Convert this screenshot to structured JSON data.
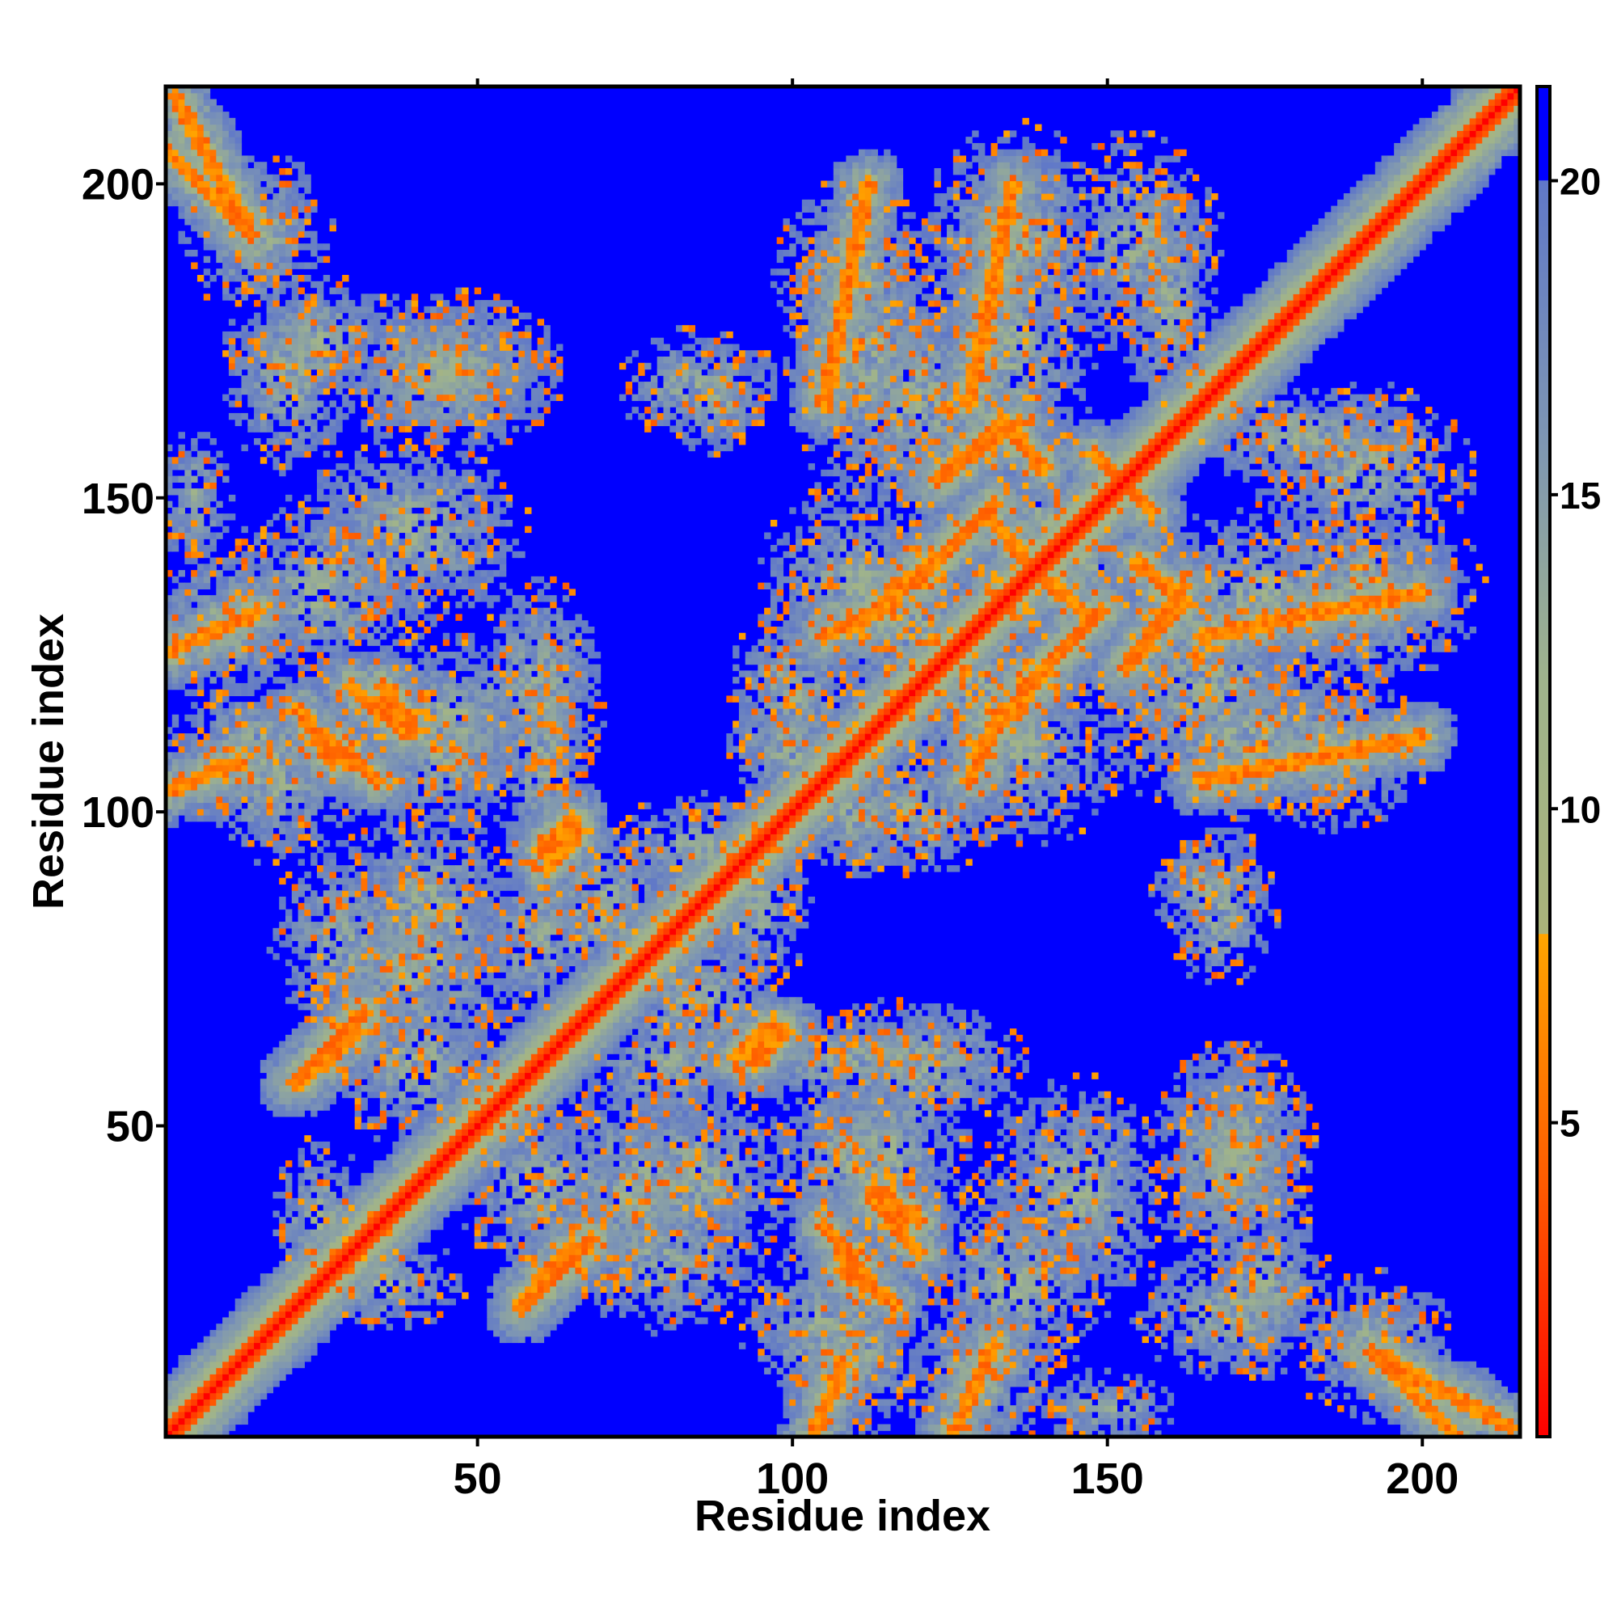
{
  "chart_data": {
    "type": "heatmap",
    "title": "",
    "xlabel": "Residue index",
    "ylabel": "Residue index",
    "xlim": [
      1,
      215
    ],
    "ylim": [
      1,
      215
    ],
    "n_residues": 215,
    "x_ticks": [
      50,
      100,
      150,
      200
    ],
    "y_ticks": [
      50,
      100,
      150,
      200
    ],
    "x_tick_labels": [
      "50",
      "100",
      "150",
      "200"
    ],
    "y_tick_labels": [
      "50",
      "100",
      "150",
      "200"
    ],
    "value_range": [
      0,
      21.5
    ],
    "colorbar": {
      "ticks": [
        5,
        10,
        15,
        20
      ],
      "tick_labels": [
        "5",
        "10",
        "15",
        "20"
      ],
      "placement": "right",
      "stops": [
        {
          "value": 0,
          "color": "#ff0000"
        },
        {
          "value": 4,
          "color": "#ff5a00"
        },
        {
          "value": 8,
          "color": "#ffa500"
        },
        {
          "value": 8.01,
          "color": "#aab47a"
        },
        {
          "value": 12,
          "color": "#9fb38c"
        },
        {
          "value": 16,
          "color": "#7d95b4"
        },
        {
          "value": 20,
          "color": "#6078c8"
        },
        {
          "value": 20.01,
          "color": "#0000ff"
        },
        {
          "value": 21.5,
          "color": "#0000ff"
        }
      ]
    },
    "background_value": 21.5,
    "contact_bands": [
      {
        "type": "diag",
        "x": [
          1,
          215
        ],
        "y": [
          1,
          215
        ]
      },
      {
        "type": "anti",
        "x": [
          1,
          14
        ],
        "y": [
          205,
          192
        ]
      },
      {
        "type": "anti",
        "x": [
          192,
          214
        ],
        "y": [
          14,
          2
        ]
      },
      {
        "type": "par",
        "x": [
          21,
          32
        ],
        "y": [
          57,
          68
        ]
      },
      {
        "type": "par",
        "x": [
          57,
          68
        ],
        "y": [
          21,
          32
        ]
      },
      {
        "type": "par",
        "x": [
          57,
          65
        ],
        "y": [
          22,
          31
        ]
      },
      {
        "type": "par",
        "x": [
          60,
          65
        ],
        "y": [
          94,
          99
        ]
      },
      {
        "type": "par",
        "x": [
          91,
          97
        ],
        "y": [
          61,
          66
        ]
      },
      {
        "type": "par",
        "x": [
          120,
          132
        ],
        "y": [
          137,
          149
        ]
      },
      {
        "type": "par",
        "x": [
          137,
          149
        ],
        "y": [
          120,
          132
        ]
      },
      {
        "type": "par",
        "x": [
          123,
          136
        ],
        "y": [
          153,
          162
        ]
      },
      {
        "type": "par",
        "x": [
          153,
          162
        ],
        "y": [
          123,
          134
        ]
      },
      {
        "type": "par",
        "x": [
          128,
          133
        ],
        "y": [
          105,
          116
        ]
      },
      {
        "type": "par",
        "x": [
          132,
          140
        ],
        "y": [
          113,
          122
        ]
      },
      {
        "type": "anti",
        "x": [
          138,
          146
        ],
        "y": [
          139,
          132
        ]
      },
      {
        "type": "anti",
        "x": [
          150,
          157
        ],
        "y": [
          155,
          148
        ]
      },
      {
        "type": "anti",
        "x": [
          155,
          162
        ],
        "y": [
          140,
          133
        ]
      },
      {
        "type": "anti",
        "x": [
          105,
          112
        ],
        "y": [
          34,
          26
        ]
      },
      {
        "type": "anti",
        "x": [
          113,
          120
        ],
        "y": [
          40,
          35
        ]
      },
      {
        "type": "anti",
        "x": [
          30,
          38
        ],
        "y": [
          120,
          113
        ]
      },
      {
        "type": "anti",
        "x": [
          22,
          27
        ],
        "y": [
          116,
          108
        ]
      },
      {
        "type": "par",
        "x": [
          0,
          12
        ],
        "y": [
          103,
          108
        ]
      },
      {
        "type": "par",
        "x": [
          0,
          15
        ],
        "y": [
          125,
          132
        ]
      },
      {
        "type": "par",
        "x": [
          165,
          200
        ],
        "y": [
          105,
          112
        ]
      },
      {
        "type": "par",
        "x": [
          165,
          200
        ],
        "y": [
          128,
          135
        ]
      }
    ],
    "contact_clusters": [
      {
        "x": 45,
        "y": 170,
        "rx": 14,
        "ry": 10
      },
      {
        "x": 25,
        "y": 175,
        "rx": 10,
        "ry": 8
      },
      {
        "x": 15,
        "y": 192,
        "rx": 9,
        "ry": 10
      },
      {
        "x": 85,
        "y": 168,
        "rx": 10,
        "ry": 7
      },
      {
        "x": 120,
        "y": 165,
        "rx": 10,
        "ry": 18
      },
      {
        "x": 135,
        "y": 190,
        "rx": 12,
        "ry": 15
      },
      {
        "x": 155,
        "y": 190,
        "rx": 10,
        "ry": 14
      },
      {
        "x": 110,
        "y": 185,
        "rx": 10,
        "ry": 12
      },
      {
        "x": 180,
        "y": 160,
        "rx": 14,
        "ry": 6
      },
      {
        "x": 175,
        "y": 135,
        "rx": 18,
        "ry": 10
      },
      {
        "x": 172,
        "y": 112,
        "rx": 18,
        "ry": 10
      },
      {
        "x": 110,
        "y": 135,
        "rx": 12,
        "ry": 14
      },
      {
        "x": 130,
        "y": 118,
        "rx": 10,
        "ry": 12
      },
      {
        "x": 140,
        "y": 145,
        "rx": 10,
        "ry": 10
      },
      {
        "x": 25,
        "y": 135,
        "rx": 12,
        "ry": 12
      },
      {
        "x": 15,
        "y": 110,
        "rx": 12,
        "ry": 8
      },
      {
        "x": 45,
        "y": 115,
        "rx": 14,
        "ry": 10
      },
      {
        "x": 60,
        "y": 120,
        "rx": 8,
        "ry": 14
      },
      {
        "x": 42,
        "y": 85,
        "rx": 12,
        "ry": 12
      },
      {
        "x": 30,
        "y": 80,
        "rx": 10,
        "ry": 12
      },
      {
        "x": 60,
        "y": 80,
        "rx": 8,
        "ry": 10
      },
      {
        "x": 85,
        "y": 95,
        "rx": 10,
        "ry": 6
      },
      {
        "x": 85,
        "y": 70,
        "rx": 10,
        "ry": 10
      },
      {
        "x": 75,
        "y": 40,
        "rx": 12,
        "ry": 14
      },
      {
        "x": 110,
        "y": 45,
        "rx": 10,
        "ry": 12
      },
      {
        "x": 105,
        "y": 18,
        "rx": 10,
        "ry": 10
      },
      {
        "x": 130,
        "y": 10,
        "rx": 10,
        "ry": 10
      },
      {
        "x": 145,
        "y": 40,
        "rx": 12,
        "ry": 14
      },
      {
        "x": 170,
        "y": 45,
        "rx": 10,
        "ry": 14
      },
      {
        "x": 170,
        "y": 20,
        "rx": 12,
        "ry": 8
      },
      {
        "x": 35,
        "y": 25,
        "rx": 10,
        "ry": 6
      },
      {
        "x": 40,
        "y": 60,
        "rx": 10,
        "ry": 10
      },
      {
        "x": 165,
        "y": 88,
        "rx": 6,
        "ry": 6
      },
      {
        "x": 5,
        "y": 150,
        "rx": 5,
        "ry": 8
      },
      {
        "x": 110,
        "y": 60,
        "rx": 14,
        "ry": 6
      },
      {
        "x": 100,
        "y": 110,
        "rx": 8,
        "ry": 8
      },
      {
        "x": 120,
        "y": 100,
        "rx": 10,
        "ry": 8
      }
    ]
  }
}
